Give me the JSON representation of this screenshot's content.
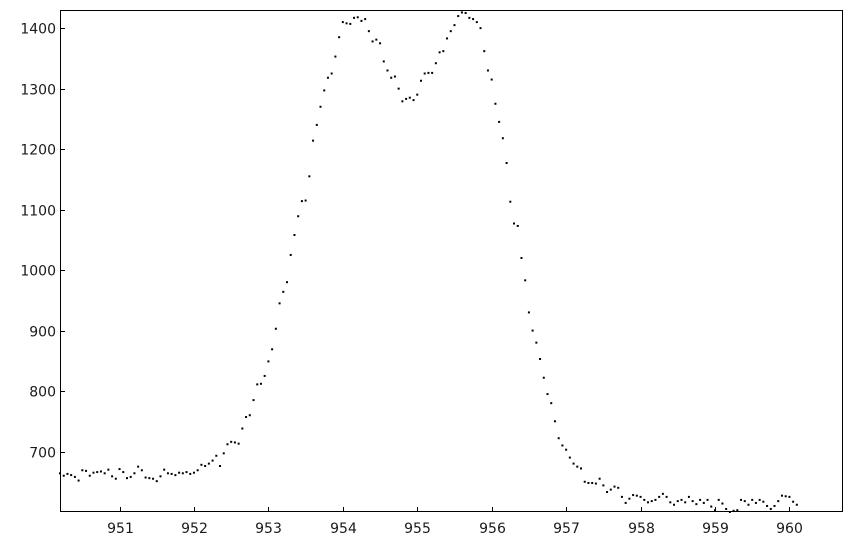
{
  "chart_data": {
    "type": "scatter",
    "title": "",
    "xlabel": "",
    "ylabel": "",
    "xlim": [
      950.2,
      960.72
    ],
    "ylim": [
      600,
      1430
    ],
    "grid": false,
    "legend": "none",
    "x_ticks": [
      951,
      952,
      953,
      954,
      955,
      956,
      957,
      958,
      959,
      960
    ],
    "x_tick_labels": [
      "951",
      "952",
      "953",
      "954",
      "955",
      "956",
      "957",
      "958",
      "959",
      "960"
    ],
    "y_ticks": [
      700,
      800,
      900,
      1000,
      1100,
      1200,
      1300,
      1400
    ],
    "y_tick_labels": [
      "700",
      "800",
      "900",
      "1000",
      "1100",
      "1200",
      "1300",
      "1400"
    ],
    "colors": {
      "points": "#000000",
      "frame": "#000000",
      "background": "#ffffff"
    },
    "series": [
      {
        "x_start": 950.2,
        "x_step": 0.05,
        "values": [
          664,
          660,
          663,
          661,
          658,
          652,
          669,
          668,
          660,
          665,
          666,
          667,
          664,
          670,
          659,
          655,
          671,
          666,
          656,
          658,
          664,
          675,
          669,
          657,
          656,
          655,
          651,
          659,
          670,
          664,
          663,
          661,
          665,
          664,
          666,
          663,
          665,
          669,
          678,
          676,
          680,
          685,
          693,
          676,
          697,
          712,
          716,
          715,
          713,
          738,
          757,
          760,
          785,
          811,
          812,
          825,
          849,
          869,
          903,
          945,
          964,
          980,
          1025,
          1058,
          1089,
          1114,
          1115,
          1155,
          1214,
          1240,
          1270,
          1297,
          1318,
          1325,
          1353,
          1385,
          1410,
          1408,
          1407,
          1417,
          1418,
          1412,
          1415,
          1395,
          1378,
          1381,
          1375,
          1345,
          1330,
          1318,
          1320,
          1300,
          1279,
          1283,
          1285,
          1281,
          1290,
          1313,
          1325,
          1326,
          1326,
          1342,
          1360,
          1362,
          1383,
          1395,
          1405,
          1420,
          1426,
          1425,
          1417,
          1415,
          1410,
          1400,
          1362,
          1330,
          1315,
          1275,
          1245,
          1218,
          1177,
          1113,
          1077,
          1073,
          1020,
          983,
          930,
          900,
          880,
          853,
          822,
          795,
          780,
          750,
          722,
          710,
          703,
          690,
          680,
          675,
          672,
          650,
          648,
          648,
          647,
          655,
          644,
          633,
          637,
          642,
          640,
          625,
          615,
          622,
          628,
          627,
          625,
          620,
          616,
          618,
          620,
          625,
          630,
          625,
          616,
          612,
          618,
          620,
          616,
          625,
          618,
          613,
          620,
          615,
          620,
          609,
          603,
          620,
          614,
          605,
          600,
          602,
          603,
          620,
          618,
          612,
          620,
          615,
          620,
          617,
          610,
          605,
          610,
          618,
          627,
          626,
          625,
          617,
          612
        ]
      }
    ]
  }
}
